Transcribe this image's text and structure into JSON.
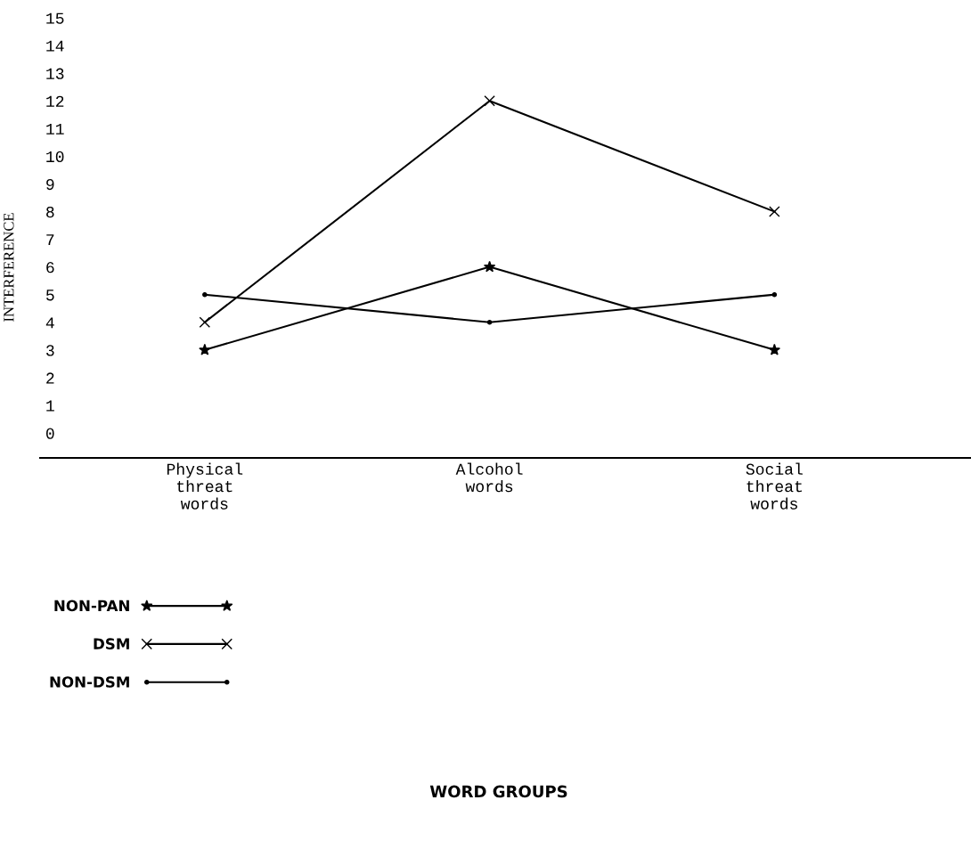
{
  "chart_data": {
    "type": "line",
    "annotations": [
      "WORD GROUPS"
    ],
    "ylabel": "INTERFERENCE",
    "categories": [
      "Physical\nthreat\nwords",
      "Alcohol\nwords",
      "Social\nthreat\nwords"
    ],
    "series": [
      {
        "name": "NON-PAN",
        "color": "#000000",
        "marker": "star",
        "values": [
          3,
          6,
          3
        ]
      },
      {
        "name": "DSM",
        "color": "#000000",
        "marker": "cross",
        "values": [
          4,
          12,
          8
        ]
      },
      {
        "name": "NON-DSM",
        "color": "#000000",
        "marker": "circle",
        "values": [
          5,
          4,
          5
        ]
      }
    ],
    "ylim": [
      -0.9,
      15
    ],
    "yticks": [
      0,
      1,
      2,
      3,
      4,
      5,
      6,
      7,
      8,
      9,
      10,
      11,
      12,
      13,
      14,
      15
    ],
    "grid": false,
    "legend": "bottom left",
    "line_style": "solid"
  }
}
